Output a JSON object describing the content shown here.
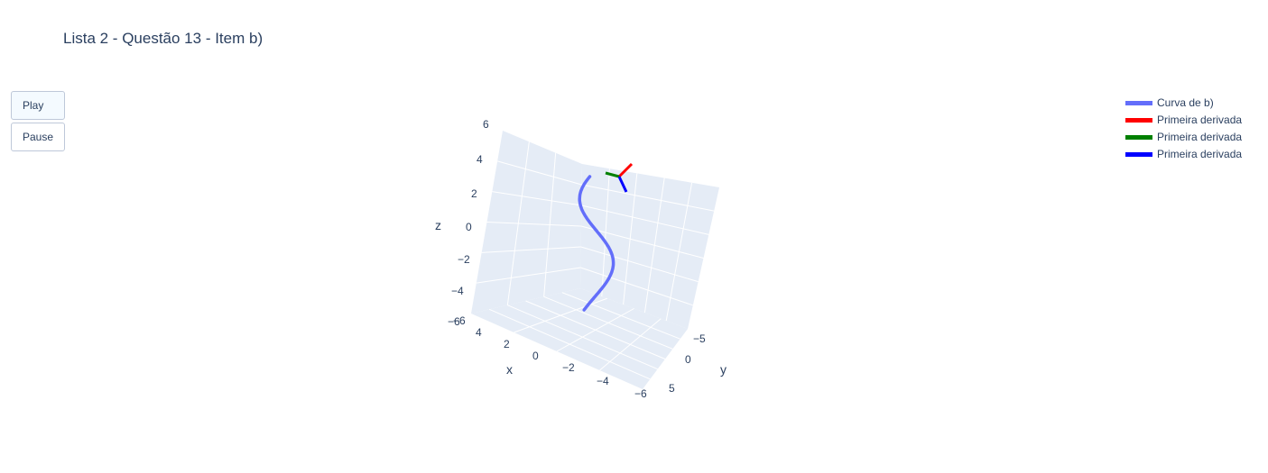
{
  "title": "Lista 2 - Questão 13 - Item b)",
  "controls": {
    "play_label": "Play",
    "pause_label": "Pause"
  },
  "legend": [
    {
      "label": "Curva de b)",
      "color": "#636efa"
    },
    {
      "label": "Primeira derivada",
      "color": "#ff0000"
    },
    {
      "label": "Primeira derivada",
      "color": "#008000"
    },
    {
      "label": "Primeira derivada",
      "color": "#0000ff"
    }
  ],
  "chart_data": {
    "type": "line3d",
    "title": "Lista 2 - Questão 13 - Item b)",
    "background_color": "#e5ecf6",
    "grid_color": "#ffffff",
    "axes": {
      "x": {
        "label": "x",
        "ticks": [
          "−6",
          "4",
          "2",
          "0",
          "−2",
          "−4",
          "−6"
        ]
      },
      "y": {
        "label": "y",
        "ticks": [
          "−5",
          "0",
          "5"
        ]
      },
      "z": {
        "label": "z",
        "ticks": [
          "6",
          "4",
          "2",
          "0",
          "−2",
          "−4",
          "−6"
        ]
      }
    },
    "series": [
      {
        "name": "Curva de b)",
        "color": "#636efa",
        "kind": "helix-like curve"
      },
      {
        "name": "Primeira derivada",
        "color": "#ff0000",
        "kind": "vector"
      },
      {
        "name": "Primeira derivada",
        "color": "#008000",
        "kind": "vector"
      },
      {
        "name": "Primeira derivada",
        "color": "#0000ff",
        "kind": "vector"
      }
    ]
  }
}
